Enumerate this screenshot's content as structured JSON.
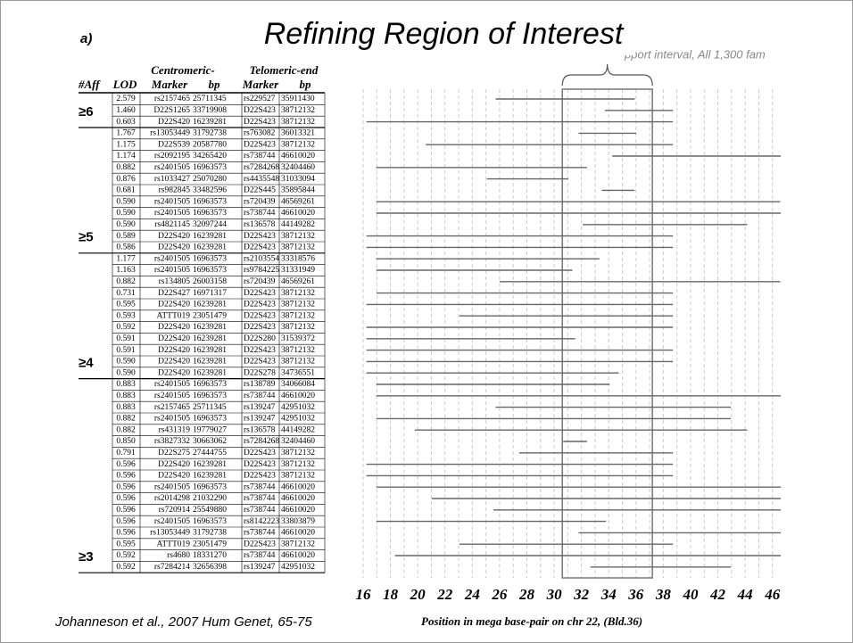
{
  "label": "a)",
  "title": "Refining Region of Interest",
  "interval_label": "pport interval, All 1,300 fam",
  "citation": "Johanneson et al., 2007 Hum Genet, 65-75",
  "table": {
    "super_headers": [
      "Centromeric-",
      "Telomeric-end"
    ],
    "headers": [
      "#Aff",
      "LOD",
      "Marker",
      "bp",
      "Marker",
      "bp"
    ],
    "groups": [
      {
        "label": "≥6",
        "rows": [
          [
            "2.579",
            "rs2157465",
            25711345,
            "rs229527",
            35911430
          ],
          [
            "1.460",
            "D22S1265",
            33719908,
            "D22S423",
            38712132
          ],
          [
            "0.603",
            "D22S420",
            16239281,
            "D22S423",
            38712132
          ]
        ]
      },
      {
        "label": "≥5",
        "rows": [
          [
            "1.767",
            "rs13053449",
            31792738,
            "rs763082",
            36013321
          ],
          [
            "1.175",
            "D22S539",
            20587780,
            "D22S423",
            38712132
          ],
          [
            "1.174",
            "rs2092195",
            34265420,
            "rs738744",
            46610020
          ],
          [
            "0.882",
            "rs2401505",
            16963573,
            "rs7284268",
            32404460
          ],
          [
            "0.876",
            "rs1033427",
            25070280,
            "rs4435548",
            31033094
          ],
          [
            "0.681",
            "rs982845",
            33482596,
            "D22S445",
            35895844
          ],
          [
            "0.590",
            "rs2401505",
            16963573,
            "rs720439",
            46569261
          ],
          [
            "0.590",
            "rs2401505",
            16963573,
            "rs738744",
            46610020
          ],
          [
            "0.590",
            "rs4821145",
            32097244,
            "rs136578",
            44149282
          ],
          [
            "0.589",
            "D22S420",
            16239281,
            "D22S423",
            38712132
          ],
          [
            "0.586",
            "D22S420",
            16239281,
            "D22S423",
            38712132
          ]
        ]
      },
      {
        "label": "≥4",
        "rows": [
          [
            "1.177",
            "rs2401505",
            16963573,
            "rs2103554",
            33318576
          ],
          [
            "1.163",
            "rs2401505",
            16963573,
            "rs9784225",
            31331949
          ],
          [
            "0.882",
            "rs134805",
            26003158,
            "rs720439",
            46569261
          ],
          [
            "0.731",
            "D22S427",
            16971317,
            "D22S423",
            38712132
          ],
          [
            "0.595",
            "D22S420",
            16239281,
            "D22S423",
            38712132
          ],
          [
            "0.593",
            "ATTT019",
            23051479,
            "D22S423",
            38712132
          ],
          [
            "0.592",
            "D22S420",
            16239281,
            "D22S423",
            38712132
          ],
          [
            "0.591",
            "D22S420",
            16239281,
            "D22S280",
            31539372
          ],
          [
            "0.591",
            "D22S420",
            16239281,
            "D22S423",
            38712132
          ],
          [
            "0.590",
            "D22S420",
            16239281,
            "D22S423",
            38712132
          ],
          [
            "0.590",
            "D22S420",
            16239281,
            "D22S278",
            34736551
          ]
        ]
      },
      {
        "label": "≥3",
        "rows": [
          [
            "0.883",
            "rs2401505",
            16963573,
            "rs138789",
            34066084
          ],
          [
            "0.883",
            "rs2401505",
            16963573,
            "rs738744",
            46610020
          ],
          [
            "0.883",
            "rs2157465",
            25711345,
            "rs139247",
            42951032
          ],
          [
            "0.882",
            "rs2401505",
            16963573,
            "rs139247",
            42951032
          ],
          [
            "0.882",
            "rs431319",
            19779027,
            "rs136578",
            44149282
          ],
          [
            "0.850",
            "rs3827332",
            30663062,
            "rs7284268",
            32404460
          ],
          [
            "0.791",
            "D22S275",
            27444755,
            "D22S423",
            38712132
          ],
          [
            "0.596",
            "D22S420",
            16239281,
            "D22S423",
            38712132
          ],
          [
            "0.596",
            "D22S420",
            16239281,
            "D22S423",
            38712132
          ],
          [
            "0.596",
            "rs2401505",
            16963573,
            "rs738744",
            46610020
          ],
          [
            "0.596",
            "rs2014298",
            21032290,
            "rs738744",
            46610020
          ],
          [
            "0.596",
            "rs720914",
            25549880,
            "rs738744",
            46610020
          ],
          [
            "0.596",
            "rs2401505",
            16963573,
            "rs8142223",
            33803879
          ],
          [
            "0.596",
            "rs13053449",
            31792738,
            "rs738744",
            46610020
          ],
          [
            "0.595",
            "ATTT019",
            23051479,
            "D22S423",
            38712132
          ],
          [
            "0.592",
            "rs4680",
            18331270,
            "rs738744",
            46610020
          ],
          [
            "0.592",
            "rs7284214",
            32656398,
            "rs139247",
            42951032
          ]
        ]
      }
    ]
  },
  "chart": {
    "xlabel": "Position in mega base-pair on chr 22, (Bld.36)",
    "xlim": [
      16000000,
      47000000
    ],
    "xticks": [
      {
        "value": 16000000,
        "label": "16"
      },
      {
        "value": 18000000,
        "label": "18"
      },
      {
        "value": 20000000,
        "label": "20"
      },
      {
        "value": 22000000,
        "label": "22"
      },
      {
        "value": 24000000,
        "label": "24"
      },
      {
        "value": 26000000,
        "label": "26"
      },
      {
        "value": 28000000,
        "label": "28"
      },
      {
        "value": 30000000,
        "label": "30"
      },
      {
        "value": 32000000,
        "label": "32"
      },
      {
        "value": 34000000,
        "label": "34"
      },
      {
        "value": 36000000,
        "label": "36"
      },
      {
        "value": 38000000,
        "label": "38"
      },
      {
        "value": 40000000,
        "label": "40"
      },
      {
        "value": 42000000,
        "label": "42"
      },
      {
        "value": 44000000,
        "label": "44"
      },
      {
        "value": 46000000,
        "label": "46"
      }
    ],
    "minor_xticks": [
      17000000,
      19000000,
      21000000,
      23000000,
      25000000,
      27000000,
      29000000,
      31000000,
      33000000,
      35000000,
      37000000,
      39000000,
      41000000,
      43000000,
      45000000
    ],
    "support_interval": [
      30600000,
      37200000
    ],
    "bar_color": "#666666"
  }
}
